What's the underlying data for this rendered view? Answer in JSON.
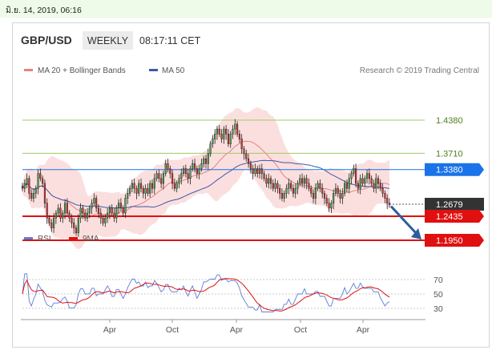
{
  "timestamp": "มิ.ย. 14, 2019, 06:16",
  "header": {
    "symbol": "GBP/USD",
    "timeframe": "WEEKLY",
    "time": "08:17:11 CET"
  },
  "credit": "Research © 2019 Trading Central",
  "colors": {
    "resistance_line": "#9ccc65",
    "support_line": "#e01010",
    "pivot_line": "#1a73e8",
    "ma20_band": "#f8c0bf",
    "ma20_line": "#e88080",
    "ma50_line": "#3b5ba6",
    "rsi_line": "#5b7fd8",
    "rsi_ma_line": "#e01010",
    "current_price_tag": "#333333",
    "arrow": "#2e5d9f"
  },
  "chart_data": [
    {
      "type": "candlestick",
      "legend": [
        "MA 20 + Bollinger Bands",
        "MA 50"
      ],
      "x_tick_labels": [
        "Apr",
        "Oct",
        "Apr",
        "Oct",
        "Apr"
      ],
      "ylim": [
        1.18,
        1.47
      ],
      "levels": [
        {
          "label": "1.4380",
          "value": 1.438,
          "kind": "resistance"
        },
        {
          "label": "1.3710",
          "value": 1.371,
          "kind": "resistance"
        },
        {
          "label": "1.3380",
          "value": 1.338,
          "kind": "pivot"
        },
        {
          "label": "1.2679",
          "value": 1.2679,
          "kind": "current"
        },
        {
          "label": "1.2435",
          "value": 1.2435,
          "kind": "support"
        },
        {
          "label": "1.1950",
          "value": 1.195,
          "kind": "support"
        }
      ],
      "close": [
        1.3,
        1.31,
        1.32,
        1.29,
        1.28,
        1.29,
        1.3,
        1.33,
        1.32,
        1.31,
        1.27,
        1.24,
        1.23,
        1.22,
        1.24,
        1.25,
        1.26,
        1.24,
        1.25,
        1.27,
        1.25,
        1.24,
        1.23,
        1.22,
        1.21,
        1.24,
        1.26,
        1.25,
        1.24,
        1.25,
        1.26,
        1.27,
        1.28,
        1.26,
        1.25,
        1.24,
        1.23,
        1.24,
        1.25,
        1.26,
        1.25,
        1.24,
        1.26,
        1.27,
        1.26,
        1.25,
        1.28,
        1.29,
        1.3,
        1.31,
        1.3,
        1.29,
        1.31,
        1.3,
        1.29,
        1.3,
        1.29,
        1.31,
        1.3,
        1.32,
        1.33,
        1.32,
        1.31,
        1.33,
        1.35,
        1.34,
        1.33,
        1.31,
        1.3,
        1.31,
        1.32,
        1.33,
        1.34,
        1.33,
        1.32,
        1.34,
        1.35,
        1.34,
        1.33,
        1.34,
        1.35,
        1.36,
        1.35,
        1.37,
        1.39,
        1.4,
        1.41,
        1.42,
        1.41,
        1.4,
        1.42,
        1.41,
        1.39,
        1.41,
        1.42,
        1.43,
        1.41,
        1.4,
        1.38,
        1.37,
        1.36,
        1.35,
        1.34,
        1.33,
        1.34,
        1.33,
        1.34,
        1.33,
        1.32,
        1.31,
        1.32,
        1.31,
        1.3,
        1.31,
        1.3,
        1.29,
        1.28,
        1.29,
        1.3,
        1.31,
        1.3,
        1.29,
        1.3,
        1.31,
        1.32,
        1.31,
        1.32,
        1.31,
        1.3,
        1.29,
        1.28,
        1.3,
        1.31,
        1.3,
        1.29,
        1.28,
        1.27,
        1.26,
        1.27,
        1.29,
        1.3,
        1.29,
        1.28,
        1.29,
        1.31,
        1.3,
        1.32,
        1.33,
        1.34,
        1.31,
        1.3,
        1.32,
        1.31,
        1.32,
        1.33,
        1.32,
        1.31,
        1.3,
        1.32,
        1.31,
        1.3,
        1.29,
        1.28,
        1.27,
        1.267
      ]
    },
    {
      "type": "line",
      "legend": [
        "RSI",
        "9MA"
      ],
      "ylim": [
        20,
        80
      ],
      "y_ticks": [
        70,
        50,
        30
      ],
      "x_tick_labels": [
        "Apr",
        "Oct",
        "Apr",
        "Oct",
        "Apr"
      ]
    }
  ]
}
